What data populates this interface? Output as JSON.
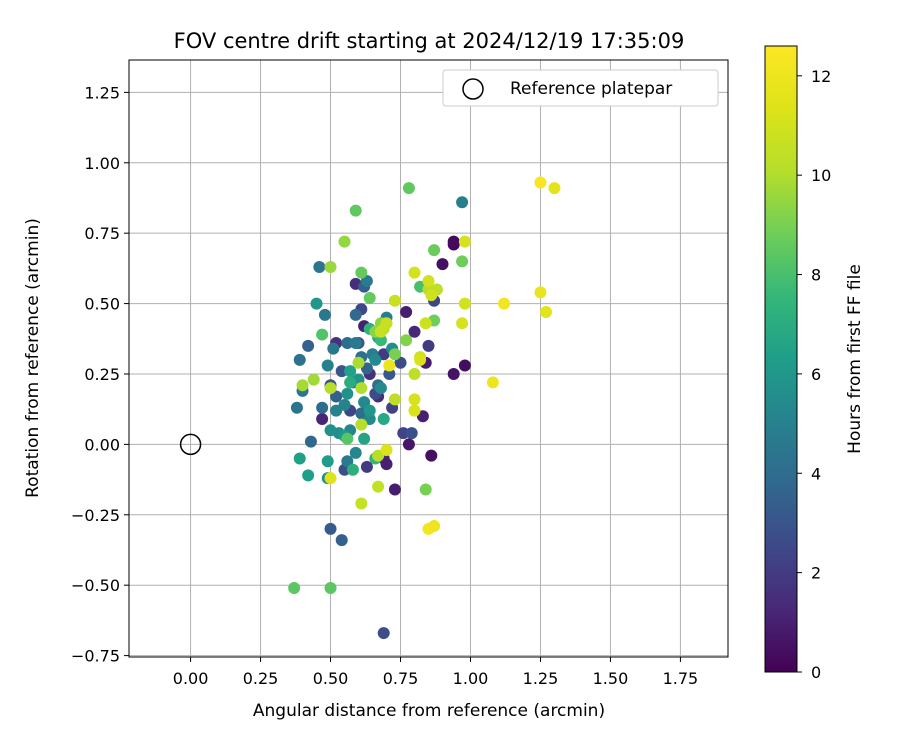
{
  "chart_data": {
    "type": "scatter",
    "title": "FOV centre drift starting at 2024/12/19 17:35:09",
    "xlabel": "Angular distance from reference (arcmin)",
    "ylabel": "Rotation from reference (arcmin)",
    "xlim": [
      -0.22,
      1.92
    ],
    "ylim": [
      -0.755,
      1.365
    ],
    "xticks": [
      0.0,
      0.25,
      0.5,
      0.75,
      1.0,
      1.25,
      1.5,
      1.75
    ],
    "yticks": [
      -0.75,
      -0.5,
      -0.25,
      0.0,
      0.25,
      0.5,
      0.75,
      1.0,
      1.25
    ],
    "xtick_labels": [
      "0.00",
      "0.25",
      "0.50",
      "0.75",
      "1.00",
      "1.25",
      "1.50",
      "1.75"
    ],
    "ytick_labels": [
      "−0.75",
      "−0.50",
      "−0.25",
      "0.00",
      "0.25",
      "0.50",
      "0.75",
      "1.00",
      "1.25"
    ],
    "grid": true,
    "colormap": "viridis",
    "colorbar": {
      "label": "Hours from first FF file",
      "range": [
        0,
        12.6
      ],
      "ticks": [
        0,
        2,
        4,
        6,
        8,
        10,
        12
      ],
      "tick_labels": [
        "0",
        "2",
        "4",
        "6",
        "8",
        "10",
        "12"
      ]
    },
    "legend": {
      "position": "top-right",
      "label": "Reference platepar",
      "marker": "open-circle"
    },
    "reference_point": {
      "x": 0.0,
      "y": 0.0
    },
    "points": [
      {
        "x": 0.94,
        "y": 0.71,
        "h": 0.2
      },
      {
        "x": 0.94,
        "y": 0.72,
        "h": 0.3
      },
      {
        "x": 0.9,
        "y": 0.64,
        "h": 0.5
      },
      {
        "x": 0.98,
        "y": 0.28,
        "h": 0.4
      },
      {
        "x": 0.94,
        "y": 0.25,
        "h": 0.6
      },
      {
        "x": 0.86,
        "y": -0.04,
        "h": 0.5
      },
      {
        "x": 0.84,
        "y": 0.29,
        "h": 0.8
      },
      {
        "x": 0.83,
        "y": 0.1,
        "h": 1.0
      },
      {
        "x": 0.78,
        "y": -0.0,
        "h": 0.7
      },
      {
        "x": 0.77,
        "y": 0.47,
        "h": 0.9
      },
      {
        "x": 0.8,
        "y": 0.4,
        "h": 1.3
      },
      {
        "x": 0.73,
        "y": -0.16,
        "h": 0.9
      },
      {
        "x": 0.69,
        "y": -0.05,
        "h": 1.2
      },
      {
        "x": 0.7,
        "y": -0.07,
        "h": 1.0
      },
      {
        "x": 0.67,
        "y": 0.17,
        "h": 1.4
      },
      {
        "x": 0.62,
        "y": 0.42,
        "h": 1.0
      },
      {
        "x": 0.59,
        "y": 0.57,
        "h": 1.5
      },
      {
        "x": 0.47,
        "y": 0.09,
        "h": 1.2
      },
      {
        "x": 0.52,
        "y": 0.36,
        "h": 1.6
      },
      {
        "x": 0.64,
        "y": 0.25,
        "h": 1.6
      },
      {
        "x": 0.85,
        "y": 0.35,
        "h": 2.0
      },
      {
        "x": 0.87,
        "y": 0.51,
        "h": 2.4
      },
      {
        "x": 0.76,
        "y": 0.04,
        "h": 2.3
      },
      {
        "x": 0.72,
        "y": 0.13,
        "h": 2.2
      },
      {
        "x": 0.66,
        "y": 0.18,
        "h": 2.6
      },
      {
        "x": 0.63,
        "y": -0.08,
        "h": 2.0
      },
      {
        "x": 0.69,
        "y": 0.32,
        "h": 2.0
      },
      {
        "x": 0.57,
        "y": 0.12,
        "h": 2.4
      },
      {
        "x": 0.61,
        "y": 0.48,
        "h": 2.5
      },
      {
        "x": 0.79,
        "y": 0.04,
        "h": 2.8
      },
      {
        "x": 0.69,
        "y": -0.67,
        "h": 2.7
      },
      {
        "x": 0.55,
        "y": -0.09,
        "h": 2.8
      },
      {
        "x": 0.54,
        "y": 0.26,
        "h": 3.0
      },
      {
        "x": 0.5,
        "y": 0.21,
        "h": 3.0
      },
      {
        "x": 0.6,
        "y": 0.36,
        "h": 3.0
      },
      {
        "x": 0.71,
        "y": 0.25,
        "h": 3.2
      },
      {
        "x": 0.75,
        "y": 0.29,
        "h": 2.6
      },
      {
        "x": 0.62,
        "y": 0.56,
        "h": 3.4
      },
      {
        "x": 0.5,
        "y": -0.3,
        "h": 3.3
      },
      {
        "x": 0.54,
        "y": -0.34,
        "h": 3.5
      },
      {
        "x": 0.52,
        "y": 0.17,
        "h": 3.4
      },
      {
        "x": 0.42,
        "y": 0.35,
        "h": 3.5
      },
      {
        "x": 0.58,
        "y": 0.22,
        "h": 3.8
      },
      {
        "x": 0.59,
        "y": 0.46,
        "h": 3.9
      },
      {
        "x": 0.63,
        "y": 0.27,
        "h": 3.6
      },
      {
        "x": 0.43,
        "y": 0.01,
        "h": 3.8
      },
      {
        "x": 0.56,
        "y": 0.36,
        "h": 4.0
      },
      {
        "x": 0.47,
        "y": 0.13,
        "h": 4.0
      },
      {
        "x": 0.61,
        "y": 0.11,
        "h": 4.0
      },
      {
        "x": 0.61,
        "y": 0.31,
        "h": 4.2
      },
      {
        "x": 0.67,
        "y": 0.21,
        "h": 4.1
      },
      {
        "x": 0.38,
        "y": 0.13,
        "h": 4.3
      },
      {
        "x": 0.39,
        "y": 0.3,
        "h": 4.2
      },
      {
        "x": 0.4,
        "y": 0.19,
        "h": 4.4
      },
      {
        "x": 0.46,
        "y": 0.63,
        "h": 4.4
      },
      {
        "x": 0.48,
        "y": 0.46,
        "h": 4.5
      },
      {
        "x": 0.51,
        "y": 0.34,
        "h": 4.5
      },
      {
        "x": 0.56,
        "y": -0.06,
        "h": 4.6
      },
      {
        "x": 0.59,
        "y": 0.36,
        "h": 4.6
      },
      {
        "x": 0.63,
        "y": 0.58,
        "h": 4.7
      },
      {
        "x": 0.65,
        "y": 0.32,
        "h": 4.8
      },
      {
        "x": 0.7,
        "y": 0.45,
        "h": 4.8
      },
      {
        "x": 0.97,
        "y": 0.86,
        "h": 4.9
      },
      {
        "x": 0.49,
        "y": 0.28,
        "h": 5.0
      },
      {
        "x": 0.52,
        "y": 0.12,
        "h": 5.1
      },
      {
        "x": 0.55,
        "y": 0.14,
        "h": 5.1
      },
      {
        "x": 0.57,
        "y": 0.05,
        "h": 5.2
      },
      {
        "x": 0.59,
        "y": -0.03,
        "h": 5.2
      },
      {
        "x": 0.62,
        "y": 0.15,
        "h": 5.3
      },
      {
        "x": 0.64,
        "y": 0.09,
        "h": 5.3
      },
      {
        "x": 0.66,
        "y": 0.3,
        "h": 5.4
      },
      {
        "x": 0.68,
        "y": 0.2,
        "h": 5.4
      },
      {
        "x": 0.72,
        "y": 0.34,
        "h": 5.5
      },
      {
        "x": 0.49,
        "y": -0.12,
        "h": 5.5
      },
      {
        "x": 0.53,
        "y": 0.04,
        "h": 5.6
      },
      {
        "x": 0.5,
        "y": 0.05,
        "h": 5.7
      },
      {
        "x": 0.56,
        "y": 0.18,
        "h": 5.7
      },
      {
        "x": 0.6,
        "y": 0.23,
        "h": 5.8
      },
      {
        "x": 0.64,
        "y": 0.12,
        "h": 6.0
      },
      {
        "x": 0.45,
        "y": 0.5,
        "h": 6.0
      },
      {
        "x": 0.55,
        "y": 0.03,
        "h": 6.1
      },
      {
        "x": 0.49,
        "y": -0.06,
        "h": 6.2
      },
      {
        "x": 0.42,
        "y": -0.11,
        "h": 6.3
      },
      {
        "x": 0.39,
        "y": -0.05,
        "h": 6.4
      },
      {
        "x": 0.57,
        "y": 0.26,
        "h": 6.5
      },
      {
        "x": 0.62,
        "y": 0.02,
        "h": 6.6
      },
      {
        "x": 0.67,
        "y": 0.38,
        "h": 6.7
      },
      {
        "x": 0.69,
        "y": 0.09,
        "h": 6.8
      },
      {
        "x": 0.57,
        "y": 0.22,
        "h": 7.0
      },
      {
        "x": 0.58,
        "y": -0.09,
        "h": 7.1
      },
      {
        "x": 0.64,
        "y": 0.41,
        "h": 7.2
      },
      {
        "x": 0.66,
        "y": -0.05,
        "h": 7.4
      },
      {
        "x": 0.68,
        "y": 0.37,
        "h": 7.6
      },
      {
        "x": 0.82,
        "y": 0.56,
        "h": 8.0
      },
      {
        "x": 0.47,
        "y": 0.39,
        "h": 8.2
      },
      {
        "x": 0.56,
        "y": 0.02,
        "h": 8.3
      },
      {
        "x": 0.37,
        "y": -0.51,
        "h": 8.4
      },
      {
        "x": 0.5,
        "y": -0.51,
        "h": 8.4
      },
      {
        "x": 0.59,
        "y": 0.83,
        "h": 8.5
      },
      {
        "x": 0.78,
        "y": 0.91,
        "h": 8.5
      },
      {
        "x": 0.61,
        "y": 0.61,
        "h": 8.6
      },
      {
        "x": 0.64,
        "y": 0.52,
        "h": 8.6
      },
      {
        "x": 0.87,
        "y": 0.69,
        "h": 8.7
      },
      {
        "x": 0.97,
        "y": 0.65,
        "h": 8.8
      },
      {
        "x": 0.87,
        "y": 0.44,
        "h": 8.8
      },
      {
        "x": 0.84,
        "y": -0.16,
        "h": 9.0
      },
      {
        "x": 0.73,
        "y": 0.32,
        "h": 9.0
      },
      {
        "x": 0.77,
        "y": 0.37,
        "h": 9.2
      },
      {
        "x": 0.66,
        "y": 0.4,
        "h": 9.3
      },
      {
        "x": 0.68,
        "y": 0.43,
        "h": 9.4
      },
      {
        "x": 0.55,
        "y": 0.72,
        "h": 9.5
      },
      {
        "x": 0.5,
        "y": 0.63,
        "h": 9.6
      },
      {
        "x": 0.44,
        "y": 0.23,
        "h": 9.7
      },
      {
        "x": 0.4,
        "y": 0.21,
        "h": 9.8
      },
      {
        "x": 0.6,
        "y": 0.29,
        "h": 9.9
      },
      {
        "x": 0.61,
        "y": 0.2,
        "h": 10.0
      },
      {
        "x": 0.5,
        "y": 0.2,
        "h": 10.1
      },
      {
        "x": 0.61,
        "y": 0.07,
        "h": 10.1
      },
      {
        "x": 0.67,
        "y": -0.04,
        "h": 10.2
      },
      {
        "x": 0.85,
        "y": 0.55,
        "h": 10.2
      },
      {
        "x": 0.88,
        "y": 0.55,
        "h": 10.3
      },
      {
        "x": 0.69,
        "y": 0.41,
        "h": 10.3
      },
      {
        "x": 0.73,
        "y": 0.16,
        "h": 10.4
      },
      {
        "x": 0.8,
        "y": 0.25,
        "h": 10.4
      },
      {
        "x": 0.67,
        "y": -0.15,
        "h": 10.5
      },
      {
        "x": 0.61,
        "y": -0.21,
        "h": 10.6
      },
      {
        "x": 0.68,
        "y": 0.4,
        "h": 10.6
      },
      {
        "x": 0.7,
        "y": 0.43,
        "h": 10.7
      },
      {
        "x": 0.73,
        "y": 0.51,
        "h": 10.7
      },
      {
        "x": 0.82,
        "y": 0.31,
        "h": 10.8
      },
      {
        "x": 0.84,
        "y": 0.43,
        "h": 10.8
      },
      {
        "x": 0.86,
        "y": 0.53,
        "h": 10.9
      },
      {
        "x": 0.85,
        "y": 0.58,
        "h": 11.0
      },
      {
        "x": 0.8,
        "y": 0.61,
        "h": 11.0
      },
      {
        "x": 0.98,
        "y": 0.5,
        "h": 11.0
      },
      {
        "x": 0.97,
        "y": 0.43,
        "h": 11.1
      },
      {
        "x": 0.98,
        "y": 0.72,
        "h": 11.1
      },
      {
        "x": 0.8,
        "y": 0.16,
        "h": 11.1
      },
      {
        "x": 0.8,
        "y": 0.12,
        "h": 11.2
      },
      {
        "x": 0.82,
        "y": 0.3,
        "h": 11.2
      },
      {
        "x": 0.7,
        "y": -0.02,
        "h": 11.3
      },
      {
        "x": 0.5,
        "y": -0.12,
        "h": 11.4
      },
      {
        "x": 0.71,
        "y": 0.28,
        "h": 11.9
      },
      {
        "x": 0.85,
        "y": -0.3,
        "h": 12.2
      },
      {
        "x": 0.87,
        "y": -0.29,
        "h": 12.0
      },
      {
        "x": 1.12,
        "y": 0.5,
        "h": 12.2
      },
      {
        "x": 1.08,
        "y": 0.22,
        "h": 12.0
      },
      {
        "x": 1.25,
        "y": 0.54,
        "h": 11.8
      },
      {
        "x": 1.27,
        "y": 0.47,
        "h": 11.6
      },
      {
        "x": 1.25,
        "y": 0.93,
        "h": 12.4
      },
      {
        "x": 1.3,
        "y": 0.91,
        "h": 11.6
      }
    ]
  }
}
